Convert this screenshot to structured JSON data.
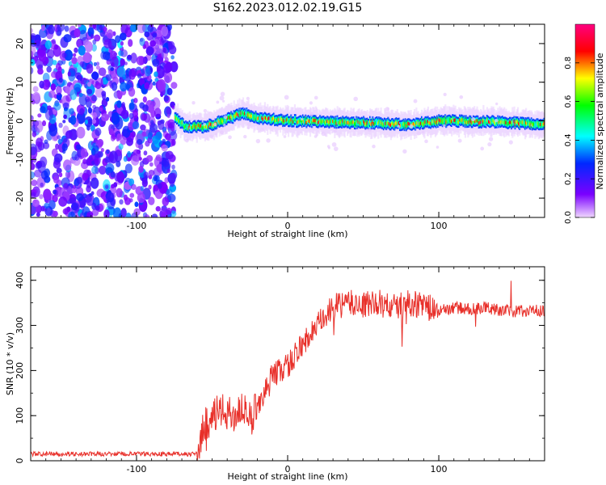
{
  "figure": {
    "title": "S162.2023.012.02.19.G15"
  },
  "chart_data": [
    {
      "type": "heatmap",
      "xlabel": "Height of straight line (km)",
      "ylabel": "Frequency (Hz)",
      "xlim": [
        -170,
        170
      ],
      "ylim": [
        -25,
        25
      ],
      "x_ticks": [
        -100,
        0,
        100
      ],
      "y_ticks": [
        -20,
        -10,
        0,
        10,
        20
      ],
      "grid": false,
      "colorbar": {
        "label": "Normalized spectral amplitude",
        "range": [
          0,
          1
        ],
        "ticks": [
          0.0,
          0.2,
          0.4,
          0.6,
          0.8
        ],
        "colors": [
          "#f0d8ff",
          "#7a00ff",
          "#0028ff",
          "#00ffff",
          "#00ff00",
          "#ffff00",
          "#ff0000",
          "#ff0080"
        ]
      },
      "regions": [
        {
          "name": "noise",
          "x": [
            -170,
            -75
          ],
          "y": [
            -25,
            25
          ],
          "amplitude": [
            0.1,
            0.3
          ]
        },
        {
          "name": "signal",
          "x": [
            -75,
            170
          ],
          "center_hz": [
            [
              -75,
              1.0
            ],
            [
              -68,
              -1.5
            ],
            [
              -55,
              -1.5
            ],
            [
              -40,
              0.5
            ],
            [
              -30,
              2.0
            ],
            [
              -20,
              0.8
            ],
            [
              0,
              0.0
            ],
            [
              50,
              -0.5
            ],
            [
              80,
              -1.0
            ],
            [
              100,
              0.0
            ],
            [
              140,
              -0.3
            ],
            [
              170,
              -1.0
            ]
          ],
          "amplitude": [
            0.4,
            0.9
          ]
        }
      ]
    },
    {
      "type": "line",
      "xlabel": "Height of straight line (km)",
      "ylabel": "SNR (10 * v/v)",
      "xlim": [
        -170,
        170
      ],
      "ylim": [
        0,
        430
      ],
      "x_ticks": [
        -100,
        0,
        100
      ],
      "y_ticks": [
        0,
        100,
        200,
        300,
        400
      ],
      "grid": false,
      "series": [
        {
          "color": "#e8302a",
          "x": [
            -170,
            -110,
            -75,
            -60,
            -55,
            -45,
            -35,
            -30,
            -25,
            -20,
            -15,
            -10,
            0,
            10,
            20,
            30,
            40,
            50,
            60,
            70,
            80,
            90,
            100,
            110,
            120,
            130,
            140,
            150,
            160,
            170
          ],
          "y": [
            15,
            15,
            15,
            15,
            80,
            110,
            100,
            120,
            80,
            130,
            150,
            190,
            210,
            260,
            300,
            340,
            350,
            345,
            350,
            340,
            350,
            345,
            330,
            340,
            335,
            340,
            335,
            330,
            335,
            330
          ]
        }
      ]
    }
  ]
}
